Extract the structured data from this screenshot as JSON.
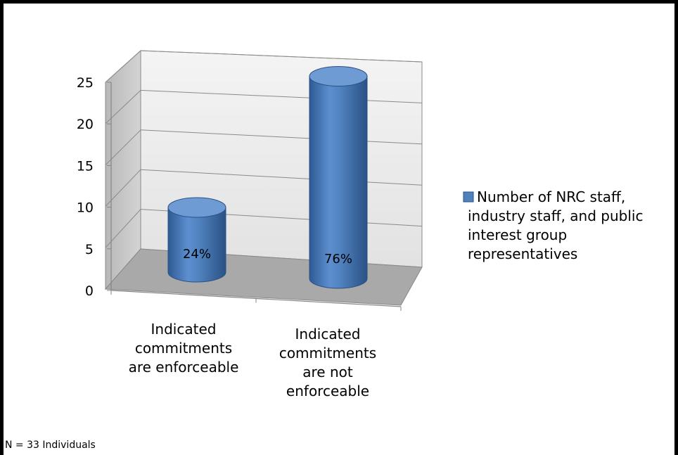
{
  "chart_data": {
    "type": "bar",
    "style": "3d-cylinder",
    "categories": [
      [
        "Indicated",
        "commitments",
        "are enforceable"
      ],
      [
        "Indicated",
        "commitments",
        "are not",
        "enforceable"
      ]
    ],
    "series": [
      {
        "name": [
          "Number of NRC staff,",
          "industry staff, and public",
          "interest group",
          "representatives"
        ],
        "values": [
          8,
          25
        ],
        "labels": [
          "24%",
          "76%"
        ],
        "color": "#4f81bd"
      }
    ],
    "ylim": [
      0,
      25
    ],
    "yticks": [
      0,
      5,
      10,
      15,
      20,
      25
    ],
    "grid": true,
    "legend": "right"
  },
  "note": "N = 33 Individuals"
}
